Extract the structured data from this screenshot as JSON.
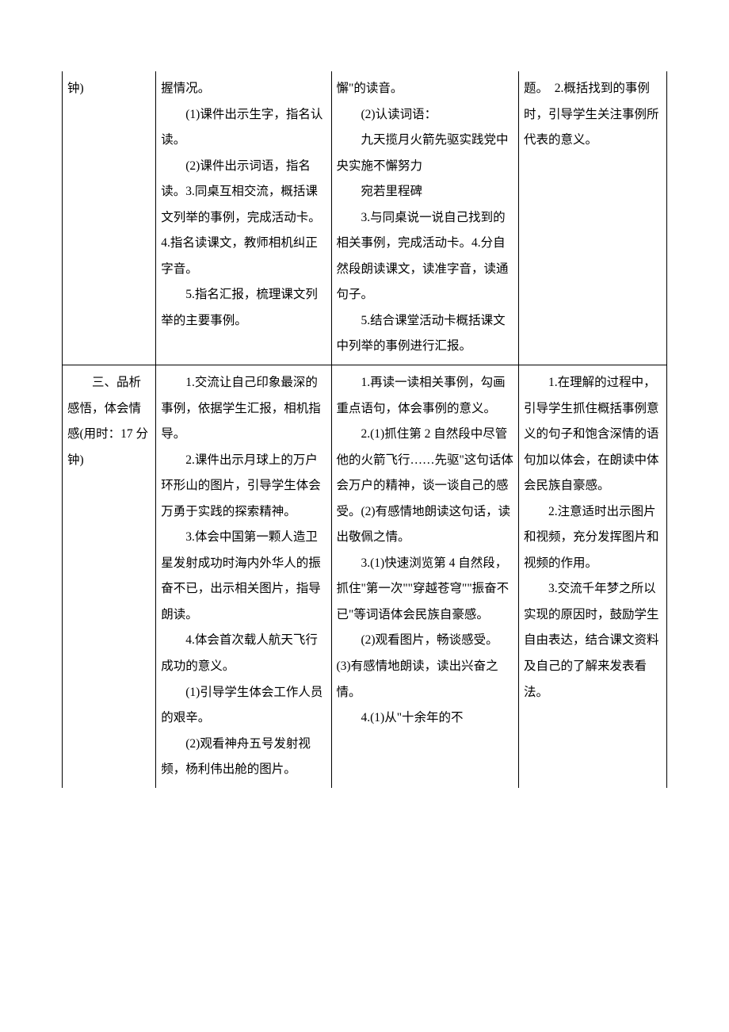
{
  "rows": [
    {
      "col1": [
        {
          "cls": "no-indent",
          "text": "钟)"
        }
      ],
      "col2": [
        {
          "cls": "no-indent",
          "text": "握情况。"
        },
        {
          "cls": "indent",
          "text": "(1)课件出示生字，指名认读。"
        },
        {
          "cls": "indent",
          "text": "(2)课件出示词语，指名读。3.同桌互相交流，概括课文列举的事例，完成活动卡。4.指名读课文，教师相机纠正字音。"
        },
        {
          "cls": "indent",
          "text": "5.指名汇报，梳理课文列举的主要事例。"
        }
      ],
      "col3": [
        {
          "cls": "no-indent",
          "text": "懈\"的读音。"
        },
        {
          "cls": "indent",
          "text": "(2)认读词语："
        },
        {
          "cls": "indent",
          "text": "九天揽月火箭先驱实践党中央实施不懈努力"
        },
        {
          "cls": "indent",
          "text": "宛若里程碑"
        },
        {
          "cls": "indent",
          "text": "3.与同桌说一说自己找到的相关事例，完成活动卡。4.分自然段朗读课文，读准字音，读通句子。"
        },
        {
          "cls": "indent",
          "text": "5.结合课堂活动卡概括课文中列举的事例进行汇报。"
        }
      ],
      "col4": [
        {
          "cls": "no-indent",
          "text": "题。　2.概括找到的事例时，引导学生关注事例所代表的意义。"
        }
      ]
    },
    {
      "col1": [
        {
          "cls": "no-indent",
          "text": ""
        },
        {
          "cls": "indent",
          "text": "三、品析感悟，体会情感(用时：17 分钟)"
        }
      ],
      "col2": [
        {
          "cls": "indent",
          "text": "1.交流让自己印象最深的事例，依据学生汇报，相机指导。"
        },
        {
          "cls": "indent",
          "text": "2.课件出示月球上的万户环形山的图片，引导学生体会万勇于实践的探索精神。"
        },
        {
          "cls": "indent",
          "text": "3.体会中国第一颗人造卫星发射成功时海内外华人的振奋不已，出示相关图片，指导朗读。"
        },
        {
          "cls": "indent",
          "text": "4.体会首次载人航天飞行成功的意义。"
        },
        {
          "cls": "indent",
          "text": "(1)引导学生体会工作人员的艰辛。"
        },
        {
          "cls": "indent",
          "text": "(2)观看神舟五号发射视频，杨利伟出舱的图片。"
        }
      ],
      "col3": [
        {
          "cls": "indent",
          "text": "1.再读一读相关事例，勾画重点语句，体会事例的意义。"
        },
        {
          "cls": "indent",
          "text": "2.(1)抓住第 2 自然段中尽管他的火箭飞行……先驱\"这句话体会万户的精神，谈一谈自己的感受。(2)有感情地朗读这句话，读出敬佩之情。"
        },
        {
          "cls": "indent",
          "text": "3.(1)快速浏览第 4 自然段，抓住\"第一次\"\"穿越苍穹\"\"振奋不已\"等词语体会民族自豪感。"
        },
        {
          "cls": "indent",
          "text": "(2)观看图片，畅谈感受。　(3)有感情地朗读，读出兴奋之情。"
        },
        {
          "cls": "indent",
          "text": "4.(1)从\"十余年的不"
        }
      ],
      "col4": [
        {
          "cls": "indent",
          "text": "1.在理解的过程中，引导学生抓住概括事例意义的句子和饱含深情的语句加以体会，在朗读中体会民族自豪感。"
        },
        {
          "cls": "indent",
          "text": "2.注意适时出示图片和视频，充分发挥图片和视频的作用。"
        },
        {
          "cls": "indent",
          "text": "3.交流千年梦之所以实现的原因时，鼓励学生自由表达，结合课文资料及自己的了解来发表看法。"
        }
      ]
    }
  ]
}
